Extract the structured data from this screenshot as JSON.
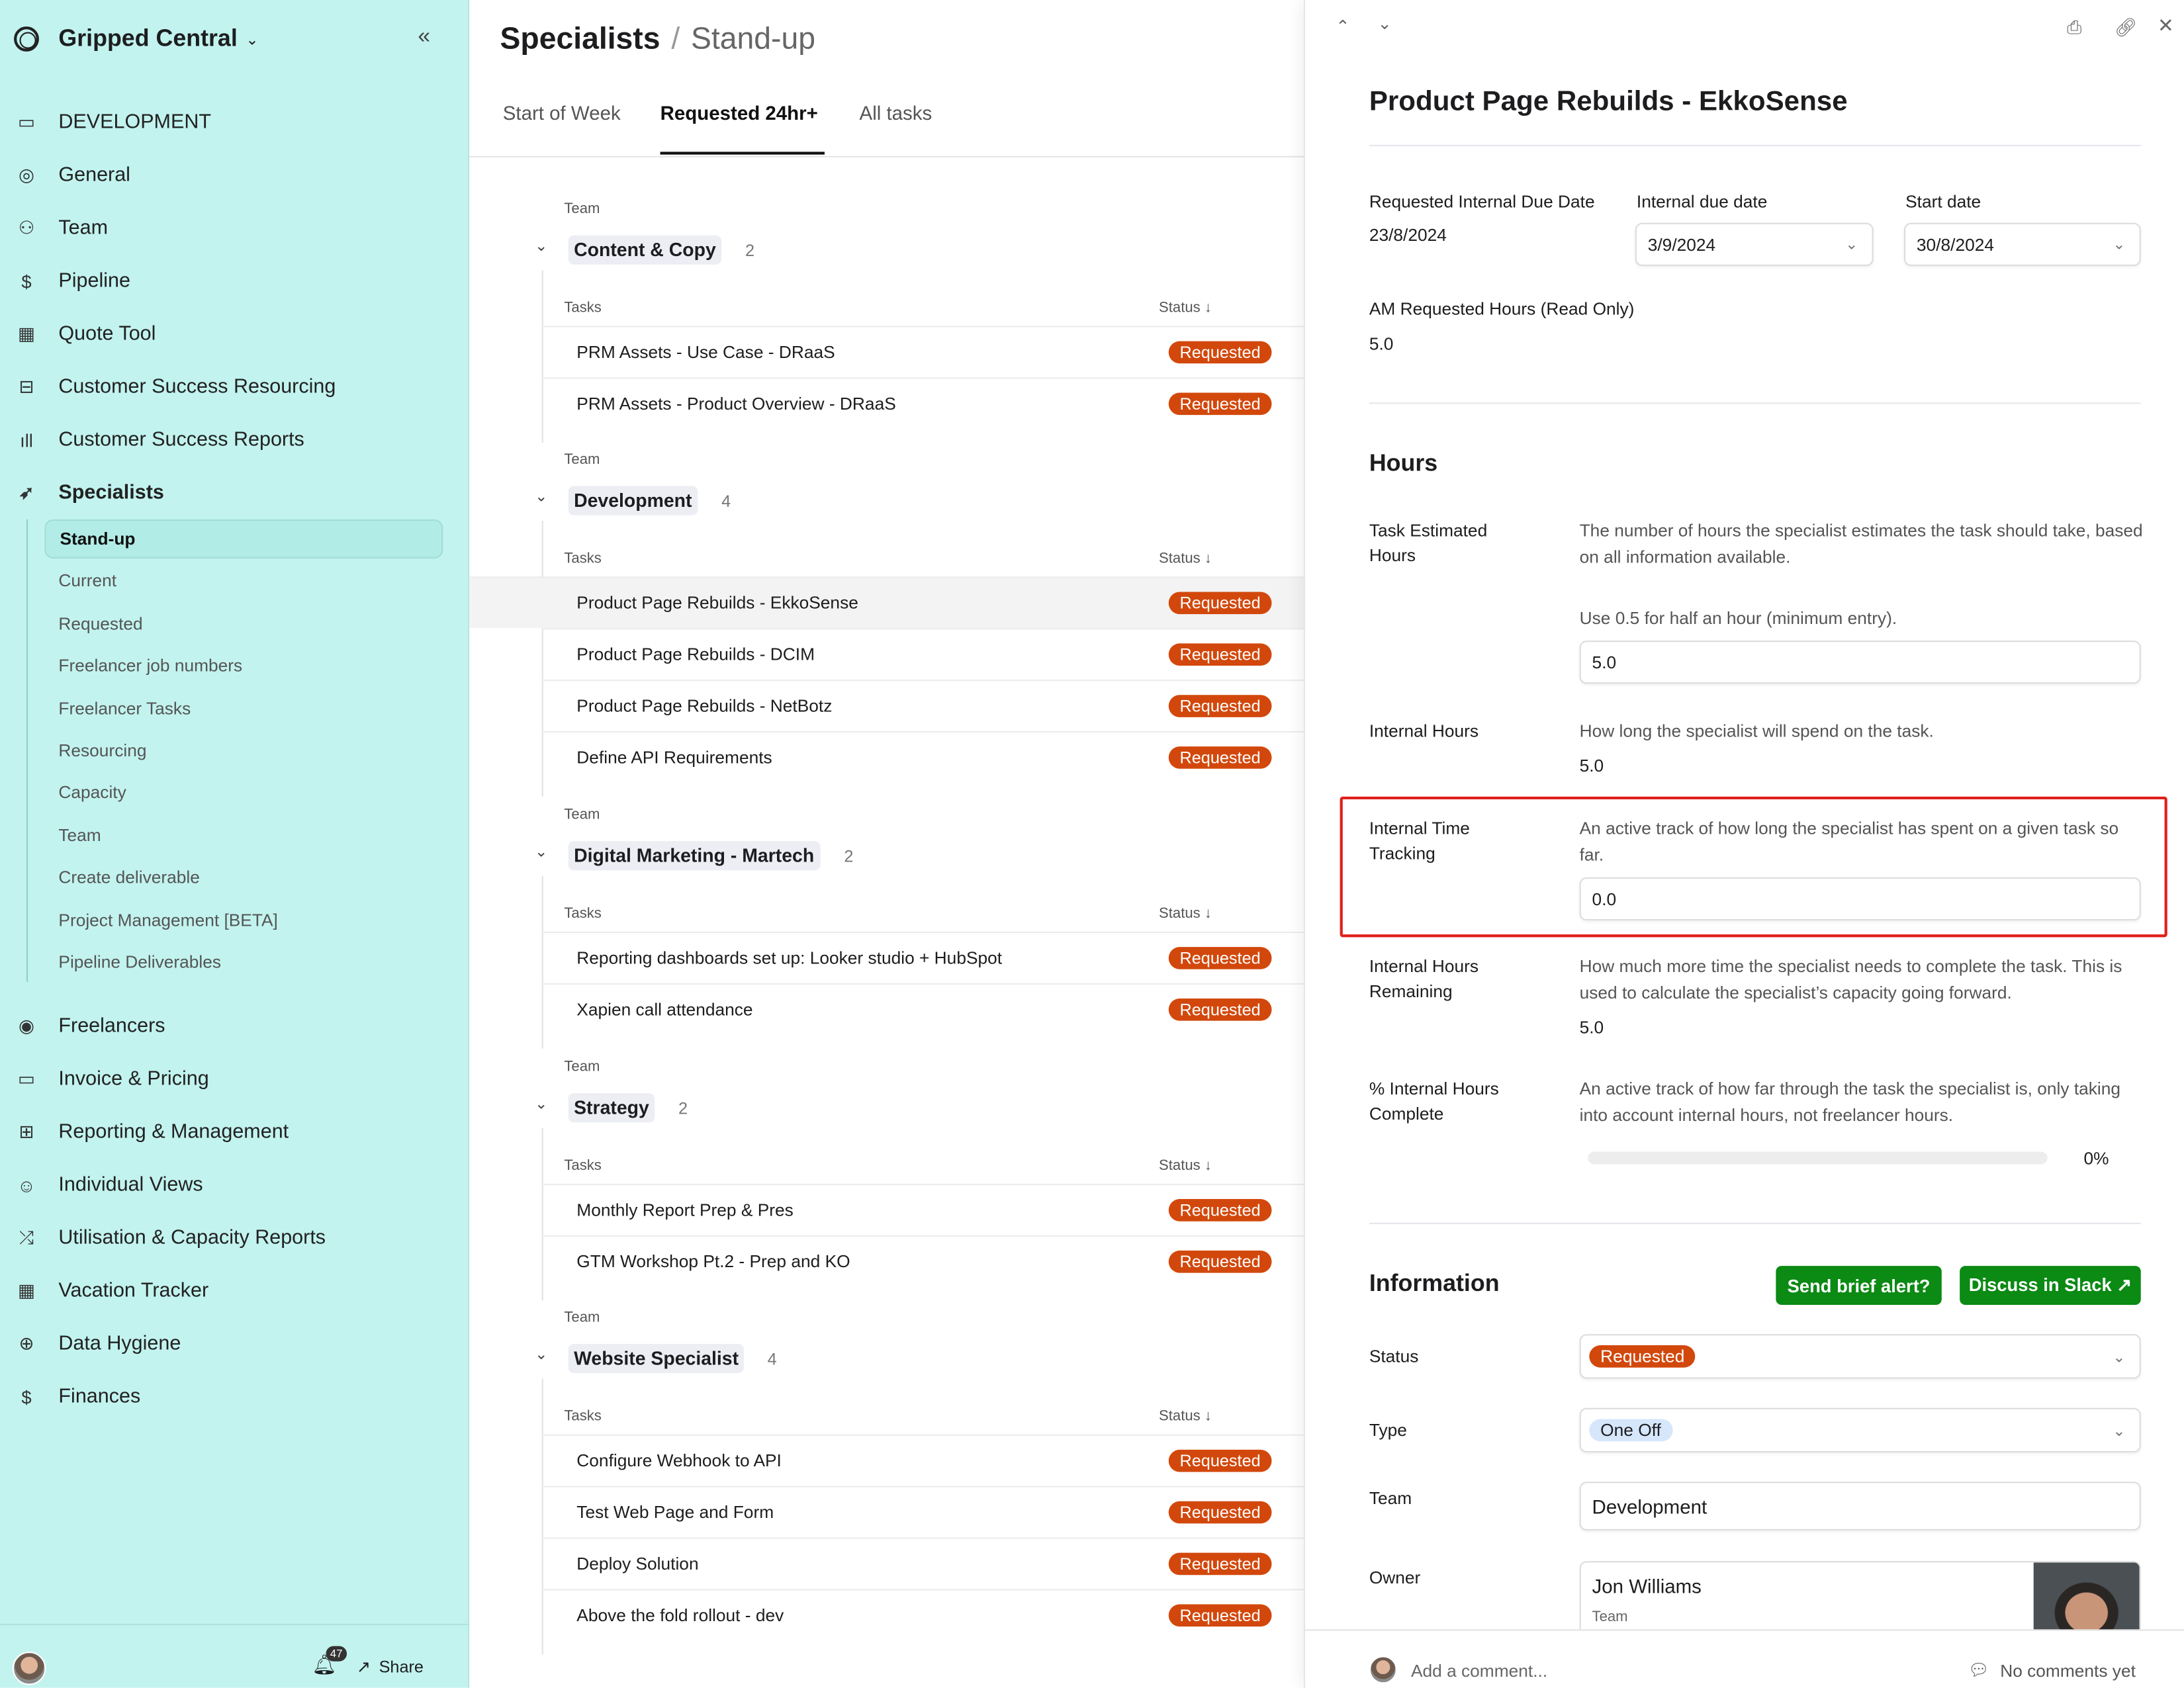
{
  "sidebar": {
    "workspace": "Gripped Central",
    "items_top": [
      {
        "label": "DEVELOPMENT",
        "icon": "code-window-icon",
        "glyph": "▭"
      },
      {
        "label": "General",
        "icon": "target-icon",
        "glyph": "◎"
      },
      {
        "label": "Team",
        "icon": "users-icon",
        "glyph": "⚇"
      },
      {
        "label": "Pipeline",
        "icon": "dollar-icon",
        "glyph": "$"
      },
      {
        "label": "Quote Tool",
        "icon": "calculator-icon",
        "glyph": "▦"
      },
      {
        "label": "Customer Success Resourcing",
        "icon": "briefcase-icon",
        "glyph": "⊟"
      },
      {
        "label": "Customer Success Reports",
        "icon": "signal-bars-icon",
        "glyph": "ıll"
      },
      {
        "label": "Specialists",
        "icon": "rocket-icon",
        "glyph": "➶"
      }
    ],
    "sub_items": [
      "Stand-up",
      "Current",
      "Requested",
      "Freelancer job numbers",
      "Freelancer Tasks",
      "Resourcing",
      "Capacity",
      "Team",
      "Create deliverable",
      "Project Management [BETA]",
      "Pipeline Deliverables"
    ],
    "items_bottom": [
      {
        "label": "Freelancers",
        "icon": "user-circle-icon",
        "glyph": "◉"
      },
      {
        "label": "Invoice & Pricing",
        "icon": "inbox-icon",
        "glyph": "▭"
      },
      {
        "label": "Reporting & Management",
        "icon": "book-icon",
        "glyph": "⊞"
      },
      {
        "label": "Individual Views",
        "icon": "smiley-icon",
        "glyph": "☺"
      },
      {
        "label": "Utilisation & Capacity Reports",
        "icon": "shuffle-icon",
        "glyph": "⤮"
      },
      {
        "label": "Vacation Tracker",
        "icon": "calendar-icon",
        "glyph": "▦"
      },
      {
        "label": "Data Hygiene",
        "icon": "medical-kit-icon",
        "glyph": "⊕"
      },
      {
        "label": "Finances",
        "icon": "dollar-icon",
        "glyph": "$"
      }
    ],
    "notifications": "47",
    "share": "Share"
  },
  "main": {
    "title": "Specialists",
    "separator": "/",
    "subtitle": "Stand-up",
    "tabs": [
      "Start of Week",
      "Requested 24hr+",
      "All tasks"
    ],
    "active_tab": 1,
    "team_label": "Team",
    "tasks_label": "Tasks",
    "status_label": "Status ↓",
    "groups": [
      {
        "name": "Content & Copy",
        "count": "2",
        "tasks": [
          {
            "name": "PRM Assets - Use Case - DRaaS",
            "status": "Requested"
          },
          {
            "name": "PRM Assets - Product Overview - DRaaS",
            "status": "Requested"
          }
        ]
      },
      {
        "name": "Development",
        "count": "4",
        "tasks": [
          {
            "name": "Product Page Rebuilds - EkkoSense",
            "status": "Requested",
            "selected": true
          },
          {
            "name": "Product Page Rebuilds - DCIM",
            "status": "Requested"
          },
          {
            "name": "Product Page Rebuilds - NetBotz",
            "status": "Requested"
          },
          {
            "name": "Define API Requirements",
            "status": "Requested"
          }
        ]
      },
      {
        "name": "Digital Marketing - Martech",
        "count": "2",
        "tasks": [
          {
            "name": "Reporting dashboards set up: Looker studio + HubSpot",
            "status": "Requested"
          },
          {
            "name": "Xapien call attendance",
            "status": "Requested"
          }
        ]
      },
      {
        "name": "Strategy",
        "count": "2",
        "tasks": [
          {
            "name": "Monthly Report Prep & Pres",
            "status": "Requested"
          },
          {
            "name": "GTM Workshop Pt.2 - Prep and KO",
            "status": "Requested"
          }
        ]
      },
      {
        "name": "Website Specialist",
        "count": "4",
        "tasks": [
          {
            "name": "Configure Webhook to API",
            "status": "Requested"
          },
          {
            "name": "Test Web Page and Form",
            "status": "Requested"
          },
          {
            "name": "Deploy Solution",
            "status": "Requested"
          },
          {
            "name": "Above the fold rollout - dev",
            "status": "Requested"
          }
        ]
      }
    ]
  },
  "panel": {
    "title": "Product Page Rebuilds - EkkoSense",
    "requested_due_label": "Requested Internal Due Date",
    "requested_due": "23/8/2024",
    "internal_due_label": "Internal due date",
    "internal_due": "3/9/2024",
    "start_label": "Start date",
    "start": "30/8/2024",
    "am_hours_label": "AM Requested Hours (Read Only)",
    "am_hours": "5.0",
    "hours_heading": "Hours",
    "est_label": "Task Estimated Hours",
    "est_desc": "The number of hours the specialist estimates the task should take, based on all information available.",
    "est_hint": "Use 0.5 for half an hour (minimum entry).",
    "est_value": "5.0",
    "internal_label": "Internal Hours",
    "internal_desc": "How long the specialist will spend on the task.",
    "internal_value": "5.0",
    "tracking_label": "Internal Time Tracking",
    "tracking_desc": "An active track of how long the specialist has spent on a given task so far.",
    "tracking_value": "0.0",
    "remaining_label": "Internal Hours Remaining",
    "remaining_desc": "How much more time the specialist needs to complete the task. This is used to calculate the specialist’s capacity going forward.",
    "remaining_value": "5.0",
    "complete_label": "% Internal Hours Complete",
    "complete_desc": "An active track of how far through the task the specialist is, only taking into account internal hours, not freelancer hours.",
    "complete_value": "0%",
    "complete_fraction": 0,
    "info_heading": "Information",
    "alert_button": "Send brief alert?",
    "slack_button": "Discuss in Slack ↗",
    "status_label": "Status",
    "status_value": "Requested",
    "type_label": "Type",
    "type_value": "One Off",
    "team_label": "Team",
    "team_value": "Development",
    "owner_label": "Owner",
    "owner_name": "Jon Williams",
    "owner_role": "Team",
    "comment_placeholder": "Add a comment...",
    "comments_status": "No comments yet"
  },
  "colors": {
    "sidebar_bg": "#c2f3ef",
    "requested": "#d2480c",
    "action_green": "#0b8a14",
    "highlight_border": "#e0201b"
  }
}
